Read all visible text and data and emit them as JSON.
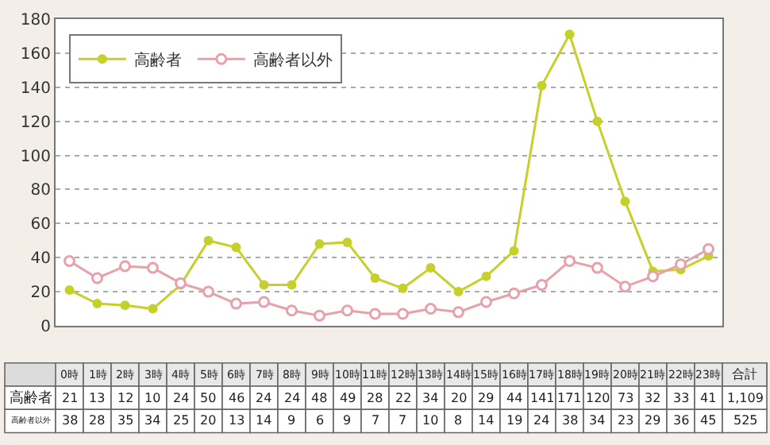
{
  "chart_data": {
    "type": "line",
    "categories": [
      "0時",
      "1時",
      "2時",
      "3時",
      "4時",
      "5時",
      "6時",
      "7時",
      "8時",
      "9時",
      "10時",
      "11時",
      "12時",
      "13時",
      "14時",
      "15時",
      "16時",
      "17時",
      "18時",
      "19時",
      "20時",
      "21時",
      "22時",
      "23時"
    ],
    "series": [
      {
        "name": "高齢者",
        "color": "#c5d12a",
        "values": [
          21,
          13,
          12,
          10,
          24,
          50,
          46,
          24,
          24,
          48,
          49,
          28,
          22,
          34,
          20,
          29,
          44,
          141,
          171,
          120,
          73,
          32,
          33,
          41
        ]
      },
      {
        "name": "高齢者以外",
        "color": "#e8a0ab",
        "values": [
          38,
          28,
          35,
          34,
          25,
          20,
          13,
          14,
          9,
          6,
          9,
          7,
          7,
          10,
          8,
          14,
          19,
          24,
          38,
          34,
          23,
          29,
          36,
          45
        ]
      }
    ],
    "ylim": [
      0,
      180
    ],
    "yticks": [
      0,
      20,
      40,
      60,
      80,
      100,
      120,
      140,
      160,
      180
    ],
    "grid": "y",
    "legend": "top left",
    "marker": "circle",
    "line_style": "solid",
    "data_labels": true,
    "totals": [
      "1,109",
      "525"
    ],
    "annotations": [
      "合計"
    ]
  }
}
